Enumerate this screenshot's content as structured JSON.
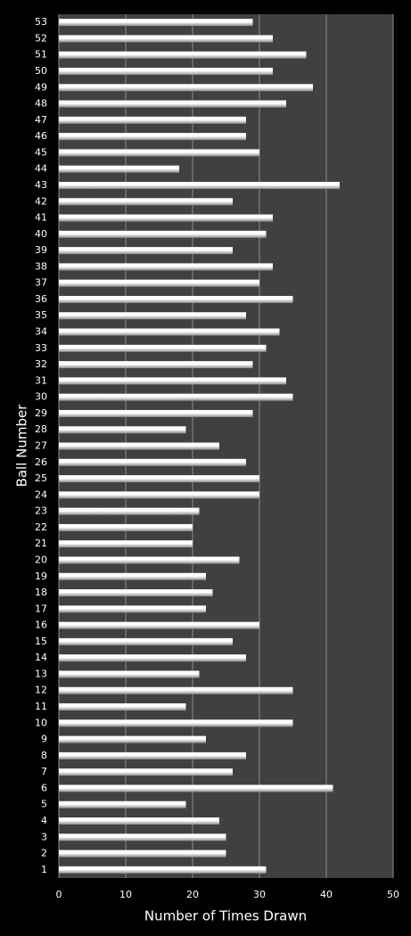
{
  "chart_data": {
    "type": "hbar",
    "x_label": "Number of Times Drawn",
    "y_label": "Ball Number",
    "categories": [
      "1",
      "2",
      "3",
      "4",
      "5",
      "6",
      "7",
      "8",
      "9",
      "10",
      "11",
      "12",
      "13",
      "14",
      "15",
      "16",
      "17",
      "18",
      "19",
      "20",
      "21",
      "22",
      "23",
      "24",
      "25",
      "26",
      "27",
      "28",
      "29",
      "30",
      "31",
      "32",
      "33",
      "34",
      "35",
      "36",
      "37",
      "38",
      "39",
      "40",
      "41",
      "42",
      "43",
      "44",
      "45",
      "46",
      "47",
      "48",
      "49",
      "50",
      "51",
      "52",
      "53"
    ],
    "values": [
      31,
      25,
      25,
      24,
      19,
      41,
      26,
      28,
      22,
      35,
      19,
      35,
      21,
      28,
      26,
      30,
      22,
      23,
      22,
      27,
      20,
      20,
      21,
      30,
      30,
      28,
      24,
      19,
      29,
      35,
      34,
      29,
      31,
      33,
      28,
      35,
      30,
      32,
      26,
      31,
      32,
      26,
      42,
      18,
      30,
      28,
      28,
      34,
      38,
      32,
      37,
      32,
      29
    ],
    "color": "#ffffff",
    "xlim": [
      0,
      50
    ],
    "xticks": [
      0,
      10,
      20,
      30,
      40,
      50
    ],
    "grid": true
  }
}
